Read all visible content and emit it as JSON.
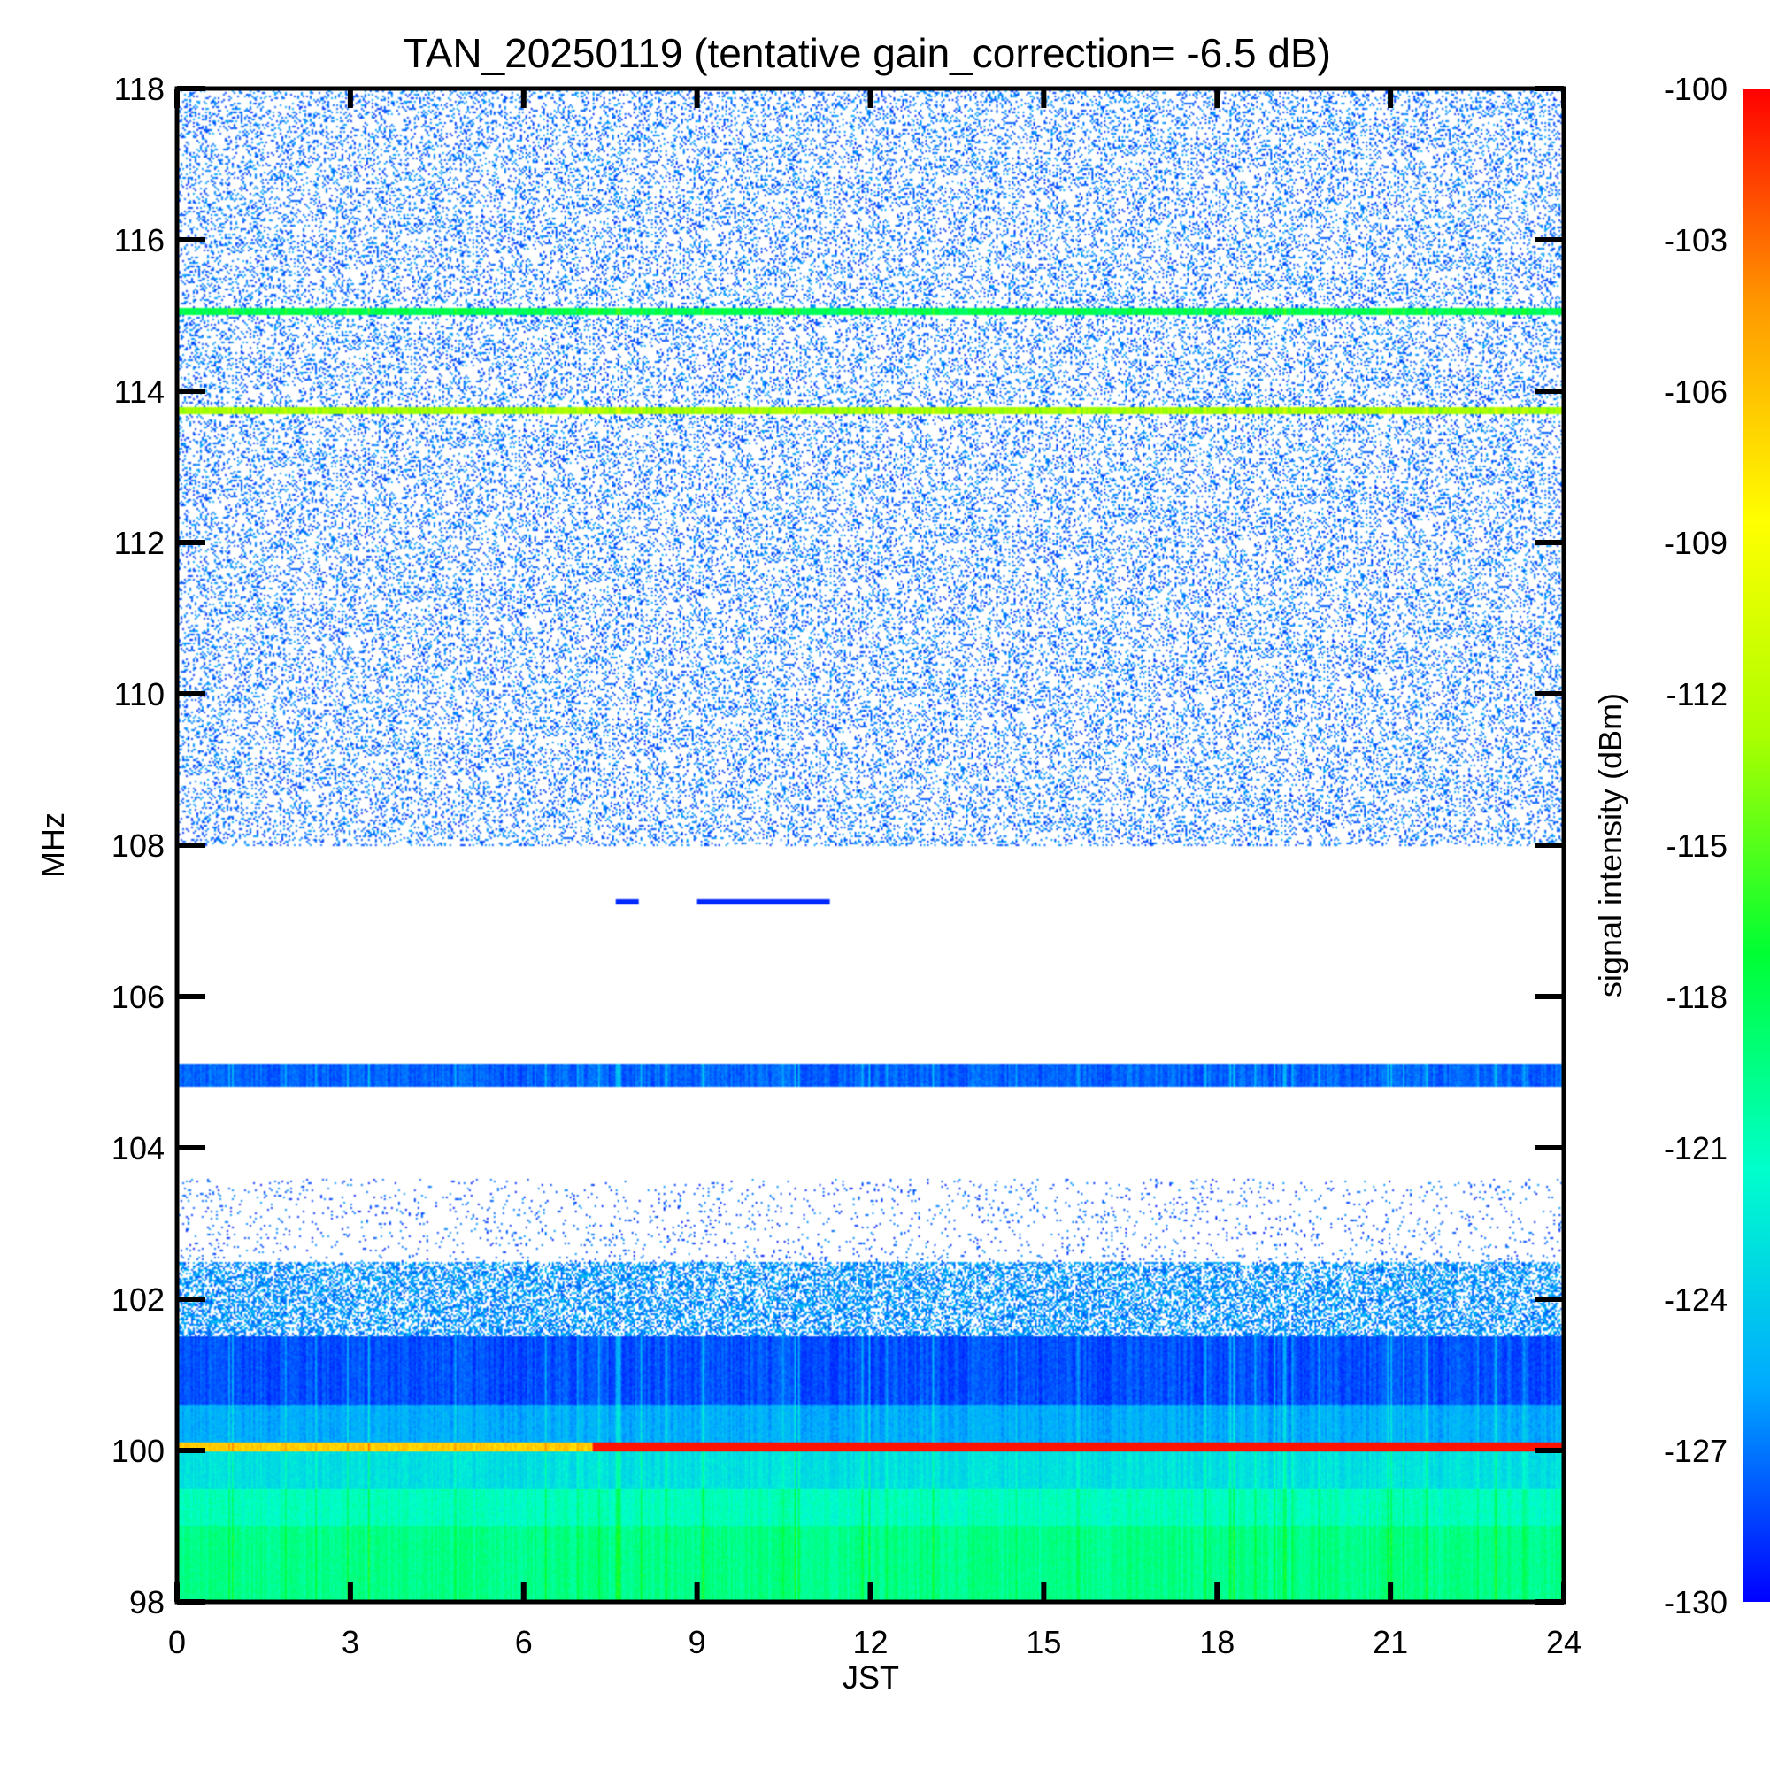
{
  "chart_data": {
    "type": "heatmap",
    "title": "TAN_20250119 (tentative gain_correction= -6.5 dB)",
    "xlabel": "JST",
    "ylabel": "MHz",
    "colorbar_label": "signal intensity (dBm)",
    "xlim": [
      0,
      24
    ],
    "ylim": [
      98,
      118
    ],
    "x_ticks": [
      0,
      3,
      6,
      9,
      12,
      15,
      18,
      21,
      24
    ],
    "x_tick_labels": [
      "0",
      "3",
      "6",
      "9",
      "12",
      "15",
      "18",
      "21",
      "24"
    ],
    "y_ticks": [
      98,
      100,
      102,
      104,
      106,
      108,
      110,
      112,
      114,
      116,
      118
    ],
    "y_tick_labels": [
      "98",
      "100",
      "102",
      "104",
      "106",
      "108",
      "110",
      "112",
      "114",
      "116",
      "118"
    ],
    "colorbar_range": [
      -130,
      -100
    ],
    "colorbar_ticks": [
      -100,
      -103,
      -106,
      -109,
      -112,
      -115,
      -118,
      -121,
      -124,
      -127,
      -130
    ],
    "colorbar_tick_labels": [
      "-100",
      "-103",
      "-106",
      "-109",
      "-112",
      "-115",
      "-118",
      "-121",
      "-124",
      "-127",
      "-130"
    ],
    "colormap": [
      "#0000ff",
      "#00aaff",
      "#00ffcc",
      "#00ff33",
      "#aaff00",
      "#ffff00",
      "#ff9900",
      "#ff0000"
    ],
    "below_range_color": "#ffffff",
    "grid": false,
    "bands": [
      {
        "freq_low": 97.8,
        "freq_high": 99.0,
        "level_dbm": -119.5,
        "description": "noise floor, green"
      },
      {
        "freq_low": 99.0,
        "freq_high": 99.5,
        "level_dbm": -121.0,
        "description": "noise floor, green-cyan"
      },
      {
        "freq_low": 99.5,
        "freq_high": 100.0,
        "level_dbm": -123.0,
        "description": "noise floor, cyan"
      },
      {
        "freq_low": 100.0,
        "freq_high": 100.1,
        "x_start": 0.0,
        "x_end": 7.2,
        "level_dbm": -106.5,
        "description": "strong carrier"
      },
      {
        "freq_low": 100.0,
        "freq_high": 100.1,
        "x_start": 7.2,
        "x_end": 24.0,
        "level_dbm": -100.5,
        "description": "strong carrier"
      },
      {
        "freq_low": 100.1,
        "freq_high": 100.6,
        "level_dbm": -125.5,
        "description": "noise floor, light blue"
      },
      {
        "freq_low": 100.6,
        "freq_high": 101.5,
        "level_dbm": -128.0,
        "description": "noise floor, blue"
      },
      {
        "freq_low": 104.8,
        "freq_high": 105.1,
        "level_dbm": -127.5,
        "description": "steady carrier"
      },
      {
        "freq_low": 113.7,
        "freq_high": 113.8,
        "level_dbm": -113.0,
        "description": "steady carrier"
      },
      {
        "freq_low": 115.0,
        "freq_high": 115.1,
        "level_dbm": -118.0,
        "description": "steady carrier"
      }
    ],
    "intermittent": [
      {
        "freq": 107.25,
        "x_start": 7.6,
        "x_end": 8.0,
        "level_dbm": -129
      },
      {
        "freq": 107.25,
        "x_start": 9.0,
        "x_end": 11.3,
        "level_dbm": -129
      }
    ],
    "speckle": [
      {
        "freq_low": 101.5,
        "freq_high": 102.5,
        "density": 0.55,
        "level_dbm": -127
      },
      {
        "freq_low": 102.5,
        "freq_high": 103.6,
        "density": 0.05,
        "level_dbm": -128.5
      },
      {
        "freq_low": 108.0,
        "freq_high": 118.0,
        "density": 0.22,
        "level_dbm": -128
      }
    ]
  }
}
